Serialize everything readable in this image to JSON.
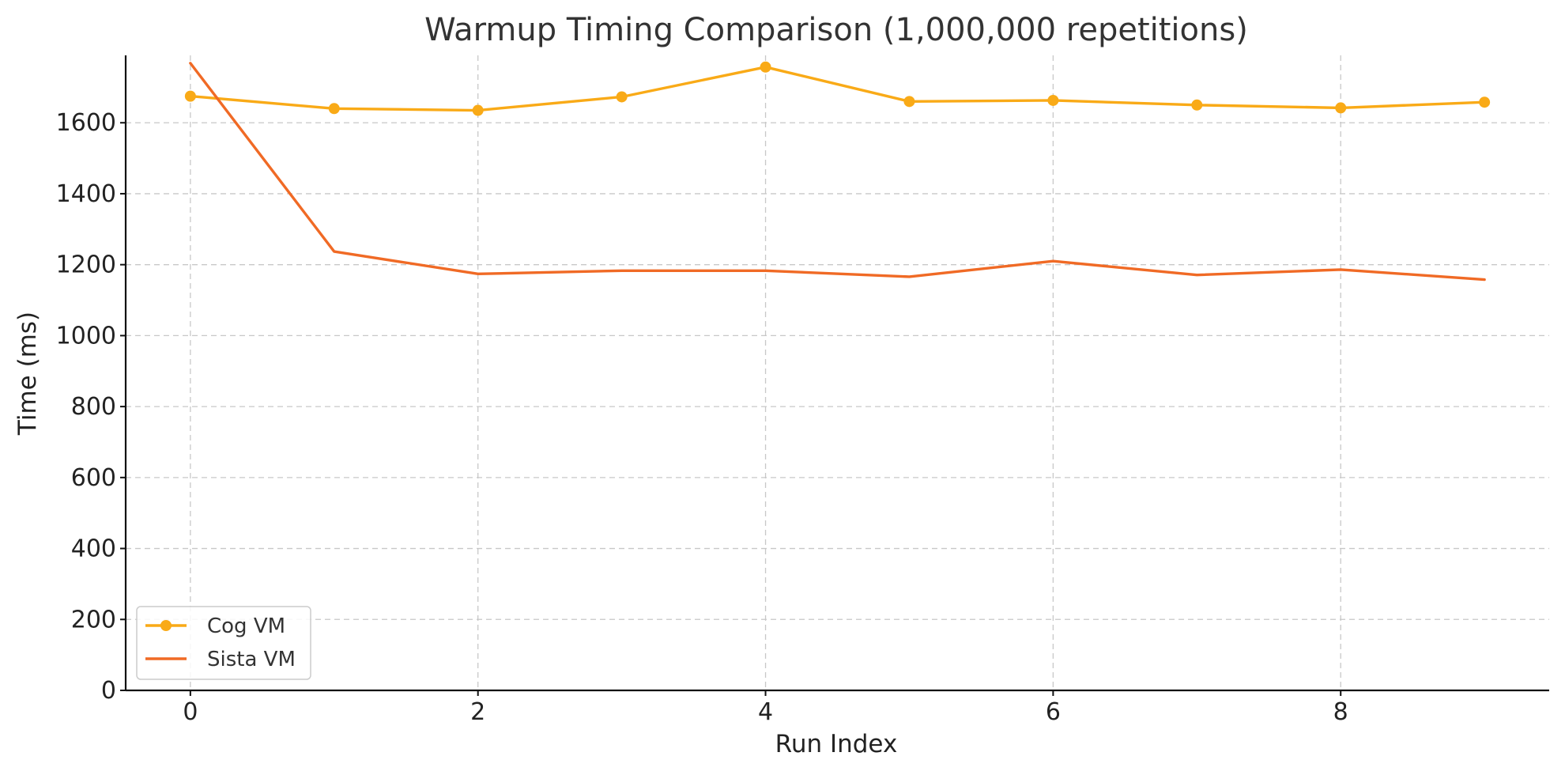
{
  "chart_data": {
    "type": "line",
    "title": "Warmup Timing Comparison (1,000,000 repetitions)",
    "xlabel": "Run Index",
    "ylabel": "Time (ms)",
    "x": [
      0,
      1,
      2,
      3,
      4,
      5,
      6,
      7,
      8,
      9
    ],
    "xlim": [
      -0.45,
      9.45
    ],
    "ylim": [
      0,
      1790
    ],
    "xticks": [
      0,
      2,
      4,
      6,
      8
    ],
    "yticks": [
      0,
      200,
      400,
      600,
      800,
      1000,
      1200,
      1400,
      1600
    ],
    "grid": true,
    "legend_position": "lower-left",
    "series": [
      {
        "name": "Cog VM",
        "color": "#f9aa17",
        "marker": "circle",
        "values": [
          1675,
          1640,
          1635,
          1673,
          1757,
          1660,
          1663,
          1650,
          1642,
          1658
        ]
      },
      {
        "name": "Sista VM",
        "color": "#f06a25",
        "marker": "none",
        "values": [
          1768,
          1237,
          1174,
          1183,
          1183,
          1166,
          1210,
          1171,
          1186,
          1158
        ]
      }
    ]
  }
}
